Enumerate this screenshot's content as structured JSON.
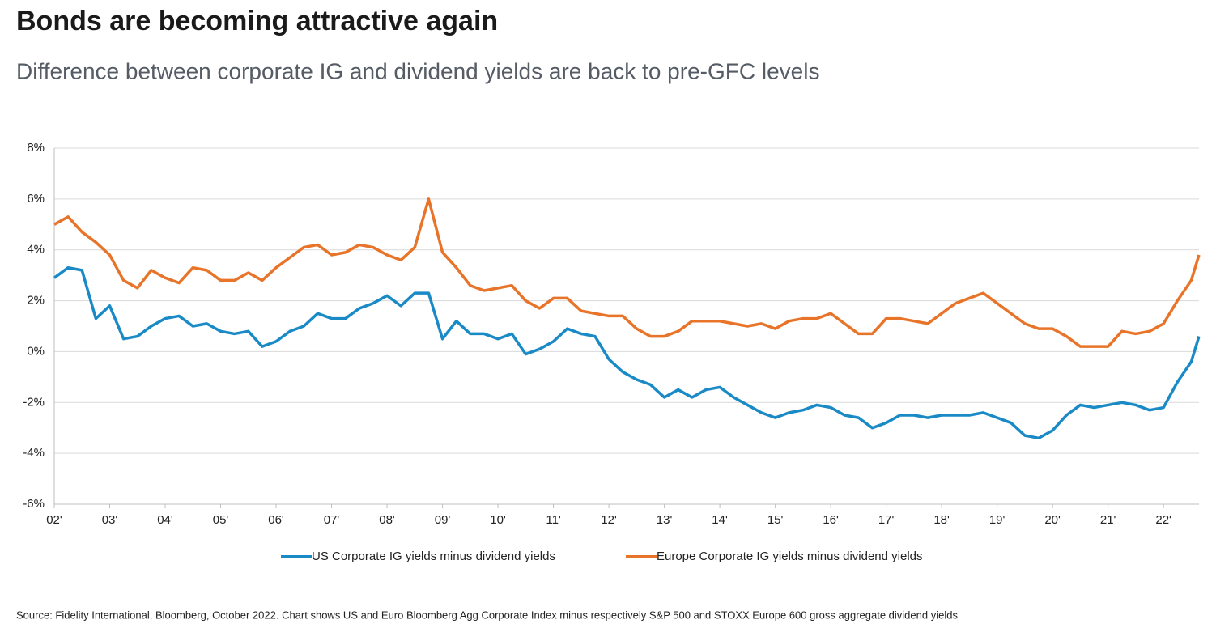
{
  "chart_data": {
    "type": "line",
    "title": "Bonds are becoming attractive again",
    "subtitle": "Difference between corporate IG and dividend yields are back to pre-GFC levels",
    "source": "Source: Fidelity International, Bloomberg, October 2022. Chart shows US and Euro Bloomberg Agg Corporate Index minus respectively S&P 500 and STOXX Europe 600 gross aggregate dividend yields",
    "x": [
      2002,
      2002.25,
      2002.5,
      2002.75,
      2003,
      2003.25,
      2003.5,
      2003.75,
      2004,
      2004.25,
      2004.5,
      2004.75,
      2005,
      2005.25,
      2005.5,
      2005.75,
      2006,
      2006.25,
      2006.5,
      2006.75,
      2007,
      2007.25,
      2007.5,
      2007.75,
      2008,
      2008.25,
      2008.5,
      2008.75,
      2009,
      2009.25,
      2009.5,
      2009.75,
      2010,
      2010.25,
      2010.5,
      2010.75,
      2011,
      2011.25,
      2011.5,
      2011.75,
      2012,
      2012.25,
      2012.5,
      2012.75,
      2013,
      2013.25,
      2013.5,
      2013.75,
      2014,
      2014.25,
      2014.5,
      2014.75,
      2015,
      2015.25,
      2015.5,
      2015.75,
      2016,
      2016.25,
      2016.5,
      2016.75,
      2017,
      2017.25,
      2017.5,
      2017.75,
      2018,
      2018.25,
      2018.5,
      2018.75,
      2019,
      2019.25,
      2019.5,
      2019.75,
      2020,
      2020.25,
      2020.5,
      2020.75,
      2021,
      2021.25,
      2021.5,
      2021.75,
      2022,
      2022.25,
      2022.5,
      2022.64
    ],
    "series": [
      {
        "name": "US Corporate IG yields minus dividend yields",
        "color": "#1a8ac6",
        "values": [
          2.9,
          3.3,
          3.2,
          1.3,
          1.8,
          0.5,
          0.6,
          1.0,
          1.3,
          1.4,
          1.0,
          1.1,
          0.8,
          0.7,
          0.8,
          0.2,
          0.4,
          0.8,
          1.0,
          1.5,
          1.3,
          1.3,
          1.7,
          1.9,
          2.2,
          1.8,
          2.3,
          2.3,
          0.5,
          1.2,
          0.7,
          0.7,
          0.5,
          0.7,
          -0.1,
          0.1,
          0.4,
          0.9,
          0.7,
          0.6,
          -0.3,
          -0.8,
          -1.1,
          -1.3,
          -1.8,
          -1.5,
          -1.8,
          -1.5,
          -1.4,
          -1.8,
          -2.1,
          -2.4,
          -2.6,
          -2.4,
          -2.3,
          -2.1,
          -2.2,
          -2.5,
          -2.6,
          -3.0,
          -2.8,
          -2.5,
          -2.5,
          -2.6,
          -2.5,
          -2.5,
          -2.5,
          -2.4,
          -2.6,
          -2.8,
          -3.3,
          -3.4,
          -3.1,
          -2.5,
          -2.1,
          -2.2,
          -2.1,
          -2.0,
          -2.1,
          -2.3,
          -2.2,
          -1.2,
          -0.4,
          0.6
        ]
      },
      {
        "name": "Europe Corporate IG yields minus dividend yields",
        "color": "#e8742a",
        "values": [
          5.0,
          5.3,
          4.7,
          4.3,
          3.8,
          2.8,
          2.5,
          3.2,
          2.9,
          2.7,
          3.3,
          3.2,
          2.8,
          2.8,
          3.1,
          2.8,
          3.3,
          3.7,
          4.1,
          4.2,
          3.8,
          3.9,
          4.2,
          4.1,
          3.8,
          3.6,
          4.1,
          6.0,
          3.9,
          3.3,
          2.6,
          2.4,
          2.5,
          2.6,
          2.0,
          1.7,
          2.1,
          2.1,
          1.6,
          1.5,
          1.4,
          1.4,
          0.9,
          0.6,
          0.6,
          0.8,
          1.2,
          1.2,
          1.2,
          1.1,
          1.0,
          1.1,
          0.9,
          1.2,
          1.3,
          1.3,
          1.5,
          1.1,
          0.7,
          0.7,
          1.3,
          1.3,
          1.2,
          1.1,
          1.5,
          1.9,
          2.1,
          2.3,
          1.9,
          1.5,
          1.1,
          0.9,
          0.9,
          0.6,
          0.2,
          0.2,
          0.2,
          0.8,
          0.7,
          0.8,
          1.1,
          2.0,
          2.8,
          3.8
        ]
      }
    ],
    "xlim": [
      2002,
      2022.64
    ],
    "xticks": [
      {
        "value": 2002,
        "label": "02'"
      },
      {
        "value": 2003,
        "label": "03'"
      },
      {
        "value": 2004,
        "label": "04'"
      },
      {
        "value": 2005,
        "label": "05'"
      },
      {
        "value": 2006,
        "label": "06'"
      },
      {
        "value": 2007,
        "label": "07'"
      },
      {
        "value": 2008,
        "label": "08'"
      },
      {
        "value": 2009,
        "label": "09'"
      },
      {
        "value": 2010,
        "label": "10'"
      },
      {
        "value": 2011,
        "label": "11'"
      },
      {
        "value": 2012,
        "label": "12'"
      },
      {
        "value": 2013,
        "label": "13'"
      },
      {
        "value": 2014,
        "label": "14'"
      },
      {
        "value": 2015,
        "label": "15'"
      },
      {
        "value": 2016,
        "label": "16'"
      },
      {
        "value": 2017,
        "label": "17'"
      },
      {
        "value": 2018,
        "label": "18'"
      },
      {
        "value": 2019,
        "label": "19'"
      },
      {
        "value": 2020,
        "label": "20'"
      },
      {
        "value": 2021,
        "label": "21'"
      },
      {
        "value": 2022,
        "label": "22'"
      }
    ],
    "ylim": [
      -6,
      8
    ],
    "yticks": [
      {
        "value": -6,
        "label": "-6%"
      },
      {
        "value": -4,
        "label": "-4%"
      },
      {
        "value": -2,
        "label": "-2%"
      },
      {
        "value": 0,
        "label": "0%"
      },
      {
        "value": 2,
        "label": "2%"
      },
      {
        "value": 4,
        "label": "4%"
      },
      {
        "value": 6,
        "label": "6%"
      },
      {
        "value": 8,
        "label": "8%"
      }
    ],
    "grid": true
  }
}
